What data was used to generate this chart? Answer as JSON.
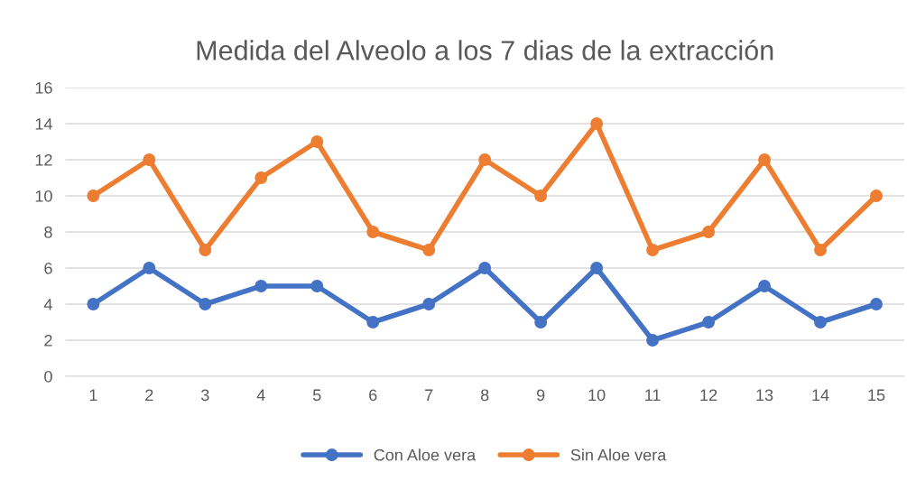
{
  "chart_data": {
    "type": "line",
    "title": "Medida del Alveolo a los 7 dias de la extracción",
    "categories": [
      "1",
      "2",
      "3",
      "4",
      "5",
      "6",
      "7",
      "8",
      "9",
      "10",
      "11",
      "12",
      "13",
      "14",
      "15"
    ],
    "series": [
      {
        "name": "Con Aloe vera",
        "color": "#4472c4",
        "values": [
          4,
          6,
          4,
          5,
          5,
          3,
          4,
          6,
          3,
          6,
          2,
          3,
          5,
          3,
          4
        ]
      },
      {
        "name": "Sin Aloe vera",
        "color": "#ed7d31",
        "values": [
          10,
          12,
          7,
          11,
          13,
          8,
          7,
          12,
          10,
          14,
          7,
          8,
          12,
          7,
          10
        ]
      }
    ],
    "ylim": [
      0,
      16
    ],
    "yticks": [
      0,
      2,
      4,
      6,
      8,
      10,
      12,
      14,
      16
    ],
    "grid": "y",
    "legend": "bottom",
    "marker": "circle",
    "line_style": "solid"
  }
}
